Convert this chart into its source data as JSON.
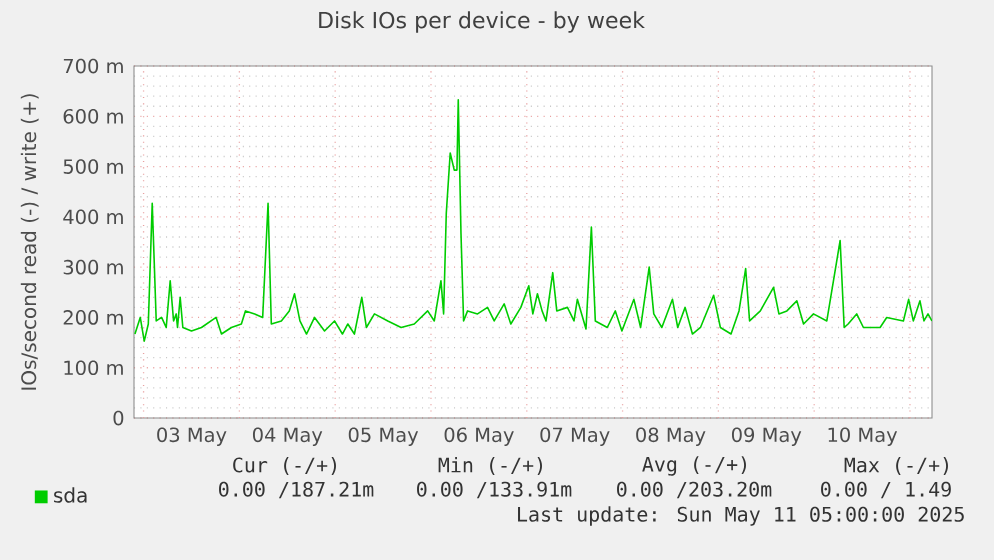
{
  "chart_data": {
    "type": "line",
    "title": "Disk IOs per device - by week",
    "ylabel": "IOs/second read (-) / write (+)",
    "xlim": [
      "2025-05-02T21:36",
      "2025-05-11T05:31"
    ],
    "ylim": [
      0,
      700
    ],
    "xticks": [
      {
        "value": "2025-05-03T12:00",
        "label": "03 May"
      },
      {
        "value": "2025-05-04T12:00",
        "label": "04 May"
      },
      {
        "value": "2025-05-05T12:00",
        "label": "05 May"
      },
      {
        "value": "2025-05-06T12:00",
        "label": "06 May"
      },
      {
        "value": "2025-05-07T12:00",
        "label": "07 May"
      },
      {
        "value": "2025-05-08T12:00",
        "label": "08 May"
      },
      {
        "value": "2025-05-09T12:00",
        "label": "09 May"
      },
      {
        "value": "2025-05-10T12:00",
        "label": "10 May"
      },
      {
        "value": "2025-05-03T00:00",
        "label": null
      },
      {
        "value": "2025-05-04T00:00",
        "label": null
      },
      {
        "value": "2025-05-05T00:00",
        "label": null
      },
      {
        "value": "2025-05-06T00:00",
        "label": null
      },
      {
        "value": "2025-05-07T00:00",
        "label": null
      },
      {
        "value": "2025-05-08T00:00",
        "label": null
      },
      {
        "value": "2025-05-09T00:00",
        "label": null
      },
      {
        "value": "2025-05-10T00:00",
        "label": null
      },
      {
        "value": "2025-05-11T00:00",
        "label": null
      }
    ],
    "yticks": [
      0,
      {
        "value": 100,
        "label": "100 m"
      },
      {
        "value": 200,
        "label": "200 m"
      },
      {
        "value": 300,
        "label": "300 m"
      },
      {
        "value": 400,
        "label": "400 m"
      },
      {
        "value": 500,
        "label": "500 m"
      },
      {
        "value": 600,
        "label": "600 m"
      },
      {
        "value": 700,
        "label": "700 m"
      }
    ],
    "grid": true,
    "legend": "bottom left",
    "marker": "none",
    "line_style": "solid",
    "series": [
      {
        "name": "sda",
        "color": "#00cc00",
        "x": [
          "2025-05-02T21:50",
          "2025-05-02T23:10",
          "2025-05-03T00:10",
          "2025-05-03T01:11",
          "2025-05-03T02:10",
          "2025-05-03T03:10",
          "2025-05-03T04:31",
          "2025-05-03T05:40",
          "2025-05-03T06:40",
          "2025-05-03T07:31",
          "2025-05-03T08:10",
          "2025-05-03T08:30",
          "2025-05-03T09:10",
          "2025-05-03T09:50",
          "2025-05-03T12:00",
          "2025-05-03T14:30",
          "2025-05-03T18:10",
          "2025-05-03T19:31",
          "2025-05-03T22:00",
          "2025-05-04T00:30",
          "2025-05-04T01:31",
          "2025-05-04T03:50",
          "2025-05-04T05:50",
          "2025-05-04T07:11",
          "2025-05-04T08:00",
          "2025-05-04T10:31",
          "2025-05-04T12:30",
          "2025-05-04T13:49",
          "2025-05-04T15:10",
          "2025-05-04T16:49",
          "2025-05-04T18:50",
          "2025-05-04T21:20",
          "2025-05-04T23:50",
          "2025-05-05T01:49",
          "2025-05-05T03:10",
          "2025-05-05T04:49",
          "2025-05-05T06:40",
          "2025-05-05T07:49",
          "2025-05-05T09:50",
          "2025-05-05T13:11",
          "2025-05-05T16:31",
          "2025-05-05T19:49",
          "2025-05-05T23:10",
          "2025-05-06T00:50",
          "2025-05-06T02:30",
          "2025-05-06T03:10",
          "2025-05-06T03:50",
          "2025-05-06T04:49",
          "2025-05-06T05:50",
          "2025-05-06T06:30",
          "2025-05-06T06:50",
          "2025-05-06T07:31",
          "2025-05-06T08:10",
          "2025-05-06T09:10",
          "2025-05-06T11:40",
          "2025-05-06T14:10",
          "2025-05-06T15:50",
          "2025-05-06T18:20",
          "2025-05-06T20:00",
          "2025-05-06T22:31",
          "2025-05-07T00:30",
          "2025-05-07T01:31",
          "2025-05-07T02:40",
          "2025-05-07T03:50",
          "2025-05-07T04:49",
          "2025-05-07T06:30",
          "2025-05-07T07:31",
          "2025-05-07T10:11",
          "2025-05-07T11:50",
          "2025-05-07T12:40",
          "2025-05-07T14:50",
          "2025-05-07T16:11",
          "2025-05-07T17:10",
          "2025-05-07T20:10",
          "2025-05-07T22:11",
          "2025-05-07T23:50",
          "2025-05-08T02:50",
          "2025-05-08T04:31",
          "2025-05-08T06:40",
          "2025-05-08T07:49",
          "2025-05-08T09:50",
          "2025-05-08T12:30",
          "2025-05-08T13:49",
          "2025-05-08T15:40",
          "2025-05-08T17:30",
          "2025-05-08T19:31",
          "2025-05-08T22:49",
          "2025-05-09T00:30",
          "2025-05-09T03:10",
          "2025-05-09T05:10",
          "2025-05-09T06:50",
          "2025-05-09T07:49",
          "2025-05-09T10:31",
          "2025-05-09T13:49",
          "2025-05-09T15:10",
          "2025-05-09T17:10",
          "2025-05-09T19:39",
          "2025-05-09T21:20",
          "2025-05-09T23:50",
          "2025-05-10T03:10",
          "2025-05-10T06:30",
          "2025-05-10T07:31",
          "2025-05-10T08:30",
          "2025-05-10T10:39",
          "2025-05-10T12:20",
          "2025-05-10T16:31",
          "2025-05-10T18:10",
          "2025-05-10T22:21",
          "2025-05-10T23:40",
          "2025-05-11T00:50",
          "2025-05-11T02:30",
          "2025-05-11T03:30",
          "2025-05-11T04:31",
          "2025-05-11T05:30"
        ],
        "values": [
          167,
          200,
          153,
          187,
          427,
          193,
          200,
          180,
          273,
          193,
          207,
          180,
          240,
          180,
          173,
          180,
          200,
          167,
          180,
          187,
          213,
          207,
          200,
          427,
          187,
          193,
          213,
          247,
          193,
          167,
          200,
          173,
          193,
          167,
          187,
          167,
          240,
          180,
          207,
          193,
          180,
          187,
          213,
          193,
          273,
          207,
          407,
          527,
          493,
          493,
          633,
          367,
          193,
          213,
          207,
          220,
          193,
          227,
          187,
          220,
          263,
          207,
          247,
          213,
          193,
          289,
          213,
          220,
          193,
          236,
          177,
          380,
          193,
          180,
          213,
          173,
          236,
          180,
          300,
          207,
          180,
          236,
          180,
          220,
          167,
          180,
          244,
          180,
          167,
          213,
          297,
          193,
          213,
          260,
          207,
          213,
          233,
          187,
          207,
          193,
          353,
          180,
          187,
          207,
          180,
          180,
          200,
          193,
          236,
          193,
          233,
          193,
          207,
          193
        ]
      }
    ],
    "annotations": [
      "Cur (-/+)",
      "Min (-/+)",
      "Avg (-/+)",
      "Max (-/+)",
      "0.00 /187.21m",
      "0.00 /133.91m",
      "0.00 /203.20m",
      "0.00 /  1.49",
      "Last update: Sun May 11 05:00:00 2025"
    ]
  }
}
